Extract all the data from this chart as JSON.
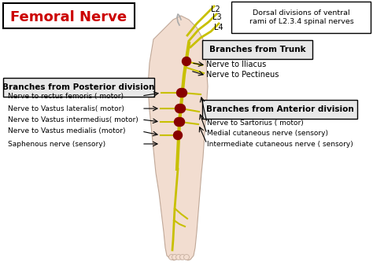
{
  "title": "Femoral Nerve",
  "title_color": "#cc0000",
  "bg_color": "#ffffff",
  "leg_color": "#f2ddd0",
  "nerve_color": "#c8c000",
  "dot_color": "#880000",
  "spine_labels": [
    "L2",
    "L3",
    "L4"
  ],
  "dorsal_box_text": "Dorsal divisions of ventral\nrami of L2.3.4 spinal nerves",
  "trunk_box_text": "Branches from Trunk",
  "posterior_box_text": "Branches from Posterior division",
  "anterior_box_text": "Branches from Anterior division",
  "trunk_branches": [
    "Nerve to Iliacus",
    "Nerve to Pectineus"
  ],
  "posterior_branches": [
    "Nerve to rectus femoris ( motor)",
    "Nerve to Vastus lateralis( motor)",
    "Nerve to Vastus intermedius( motor)",
    "Nerve to Vastus medialis (motor)",
    "Saphenous nerve (sensory)"
  ],
  "anterior_branches": [
    "Nerve to Sartorius ( motor)",
    "Medial cutaneous nerve (sensory)",
    "Intermediate cutaneous nerve ( sensory)"
  ]
}
